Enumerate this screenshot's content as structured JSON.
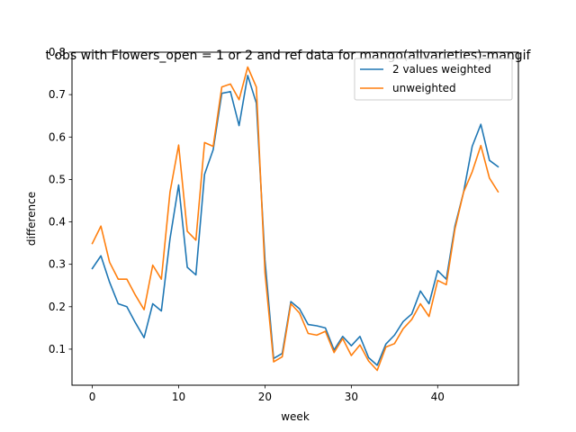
{
  "chart_data": {
    "type": "line",
    "title": "t obs with Flowers_open = 1 or 2 and ref data for mango(allvarieties)-mangif",
    "xlabel": "week",
    "ylabel": "difference",
    "xlim": [
      -2.35,
      49.35
    ],
    "ylim": [
      0.015,
      0.8
    ],
    "xticks": [
      0,
      10,
      20,
      30,
      40
    ],
    "yticks": [
      0.1,
      0.2,
      0.3,
      0.4,
      0.5,
      0.6,
      0.7,
      0.8
    ],
    "ytick_labels": [
      "0.1",
      "0.2",
      "0.3",
      "0.4",
      "0.5",
      "0.6",
      "0.7",
      "0.8"
    ],
    "grid": false,
    "legend_position": "upper right",
    "x": [
      0,
      1,
      2,
      3,
      4,
      5,
      6,
      7,
      8,
      9,
      10,
      11,
      12,
      13,
      14,
      15,
      16,
      17,
      18,
      19,
      20,
      21,
      22,
      23,
      24,
      25,
      26,
      27,
      28,
      29,
      30,
      31,
      32,
      33,
      34,
      35,
      36,
      37,
      38,
      39,
      40,
      41,
      42,
      43,
      44,
      45,
      46,
      47
    ],
    "series": [
      {
        "name": "2 values weighted",
        "color": "#1f77b4",
        "values": [
          0.29,
          0.32,
          0.258,
          0.207,
          0.2,
          0.162,
          0.127,
          0.207,
          0.19,
          0.36,
          0.487,
          0.293,
          0.275,
          0.512,
          0.57,
          0.703,
          0.707,
          0.627,
          0.745,
          0.68,
          0.31,
          0.078,
          0.09,
          0.212,
          0.195,
          0.158,
          0.155,
          0.15,
          0.098,
          0.13,
          0.108,
          0.13,
          0.08,
          0.062,
          0.112,
          0.133,
          0.165,
          0.183,
          0.237,
          0.207,
          0.285,
          0.265,
          0.39,
          0.47,
          0.578,
          0.63,
          0.545,
          0.53
        ]
      },
      {
        "name": "unweighted",
        "color": "#ff7f0e",
        "values": [
          0.349,
          0.39,
          0.305,
          0.265,
          0.265,
          0.227,
          0.193,
          0.298,
          0.265,
          0.47,
          0.581,
          0.378,
          0.357,
          0.587,
          0.578,
          0.718,
          0.725,
          0.688,
          0.765,
          0.718,
          0.28,
          0.07,
          0.082,
          0.207,
          0.185,
          0.137,
          0.133,
          0.142,
          0.092,
          0.125,
          0.085,
          0.11,
          0.072,
          0.05,
          0.105,
          0.113,
          0.148,
          0.17,
          0.207,
          0.177,
          0.262,
          0.252,
          0.383,
          0.47,
          0.518,
          0.58,
          0.503,
          0.471
        ]
      }
    ]
  }
}
